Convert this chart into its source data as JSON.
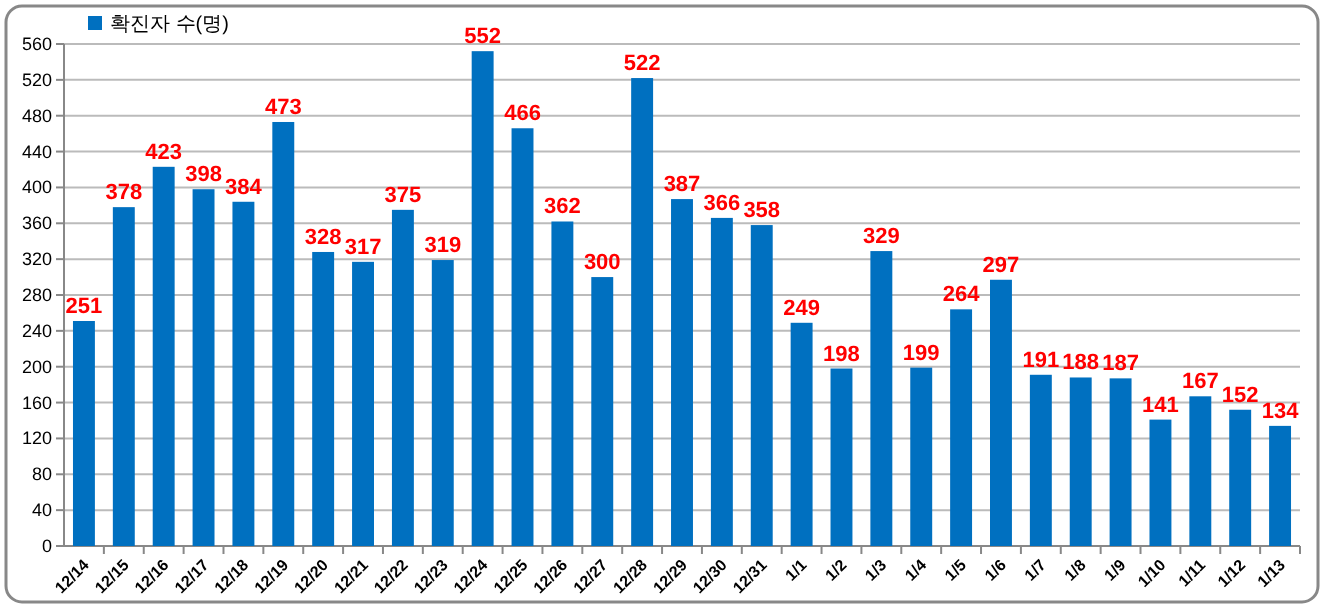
{
  "chart_data": {
    "type": "bar",
    "categories": [
      "12/14",
      "12/15",
      "12/16",
      "12/17",
      "12/18",
      "12/19",
      "12/20",
      "12/21",
      "12/22",
      "12/23",
      "12/24",
      "12/25",
      "12/26",
      "12/27",
      "12/28",
      "12/29",
      "12/30",
      "12/31",
      "1/1",
      "1/2",
      "1/3",
      "1/4",
      "1/5",
      "1/6",
      "1/7",
      "1/8",
      "1/9",
      "1/10",
      "1/11",
      "1/12",
      "1/13"
    ],
    "series": [
      {
        "name": "확진자 수(명)",
        "color": "#0070c0",
        "values": [
          251,
          378,
          423,
          398,
          384,
          473,
          328,
          317,
          375,
          319,
          552,
          466,
          362,
          300,
          522,
          387,
          366,
          358,
          249,
          198,
          329,
          199,
          264,
          297,
          191,
          188,
          187,
          141,
          167,
          152,
          134
        ]
      }
    ],
    "ylim": [
      0,
      560
    ],
    "yticks": [
      0,
      40,
      80,
      120,
      160,
      200,
      240,
      280,
      320,
      360,
      400,
      440,
      480,
      520,
      560
    ],
    "grid": "y",
    "legend": "top left",
    "data_labels": true
  }
}
